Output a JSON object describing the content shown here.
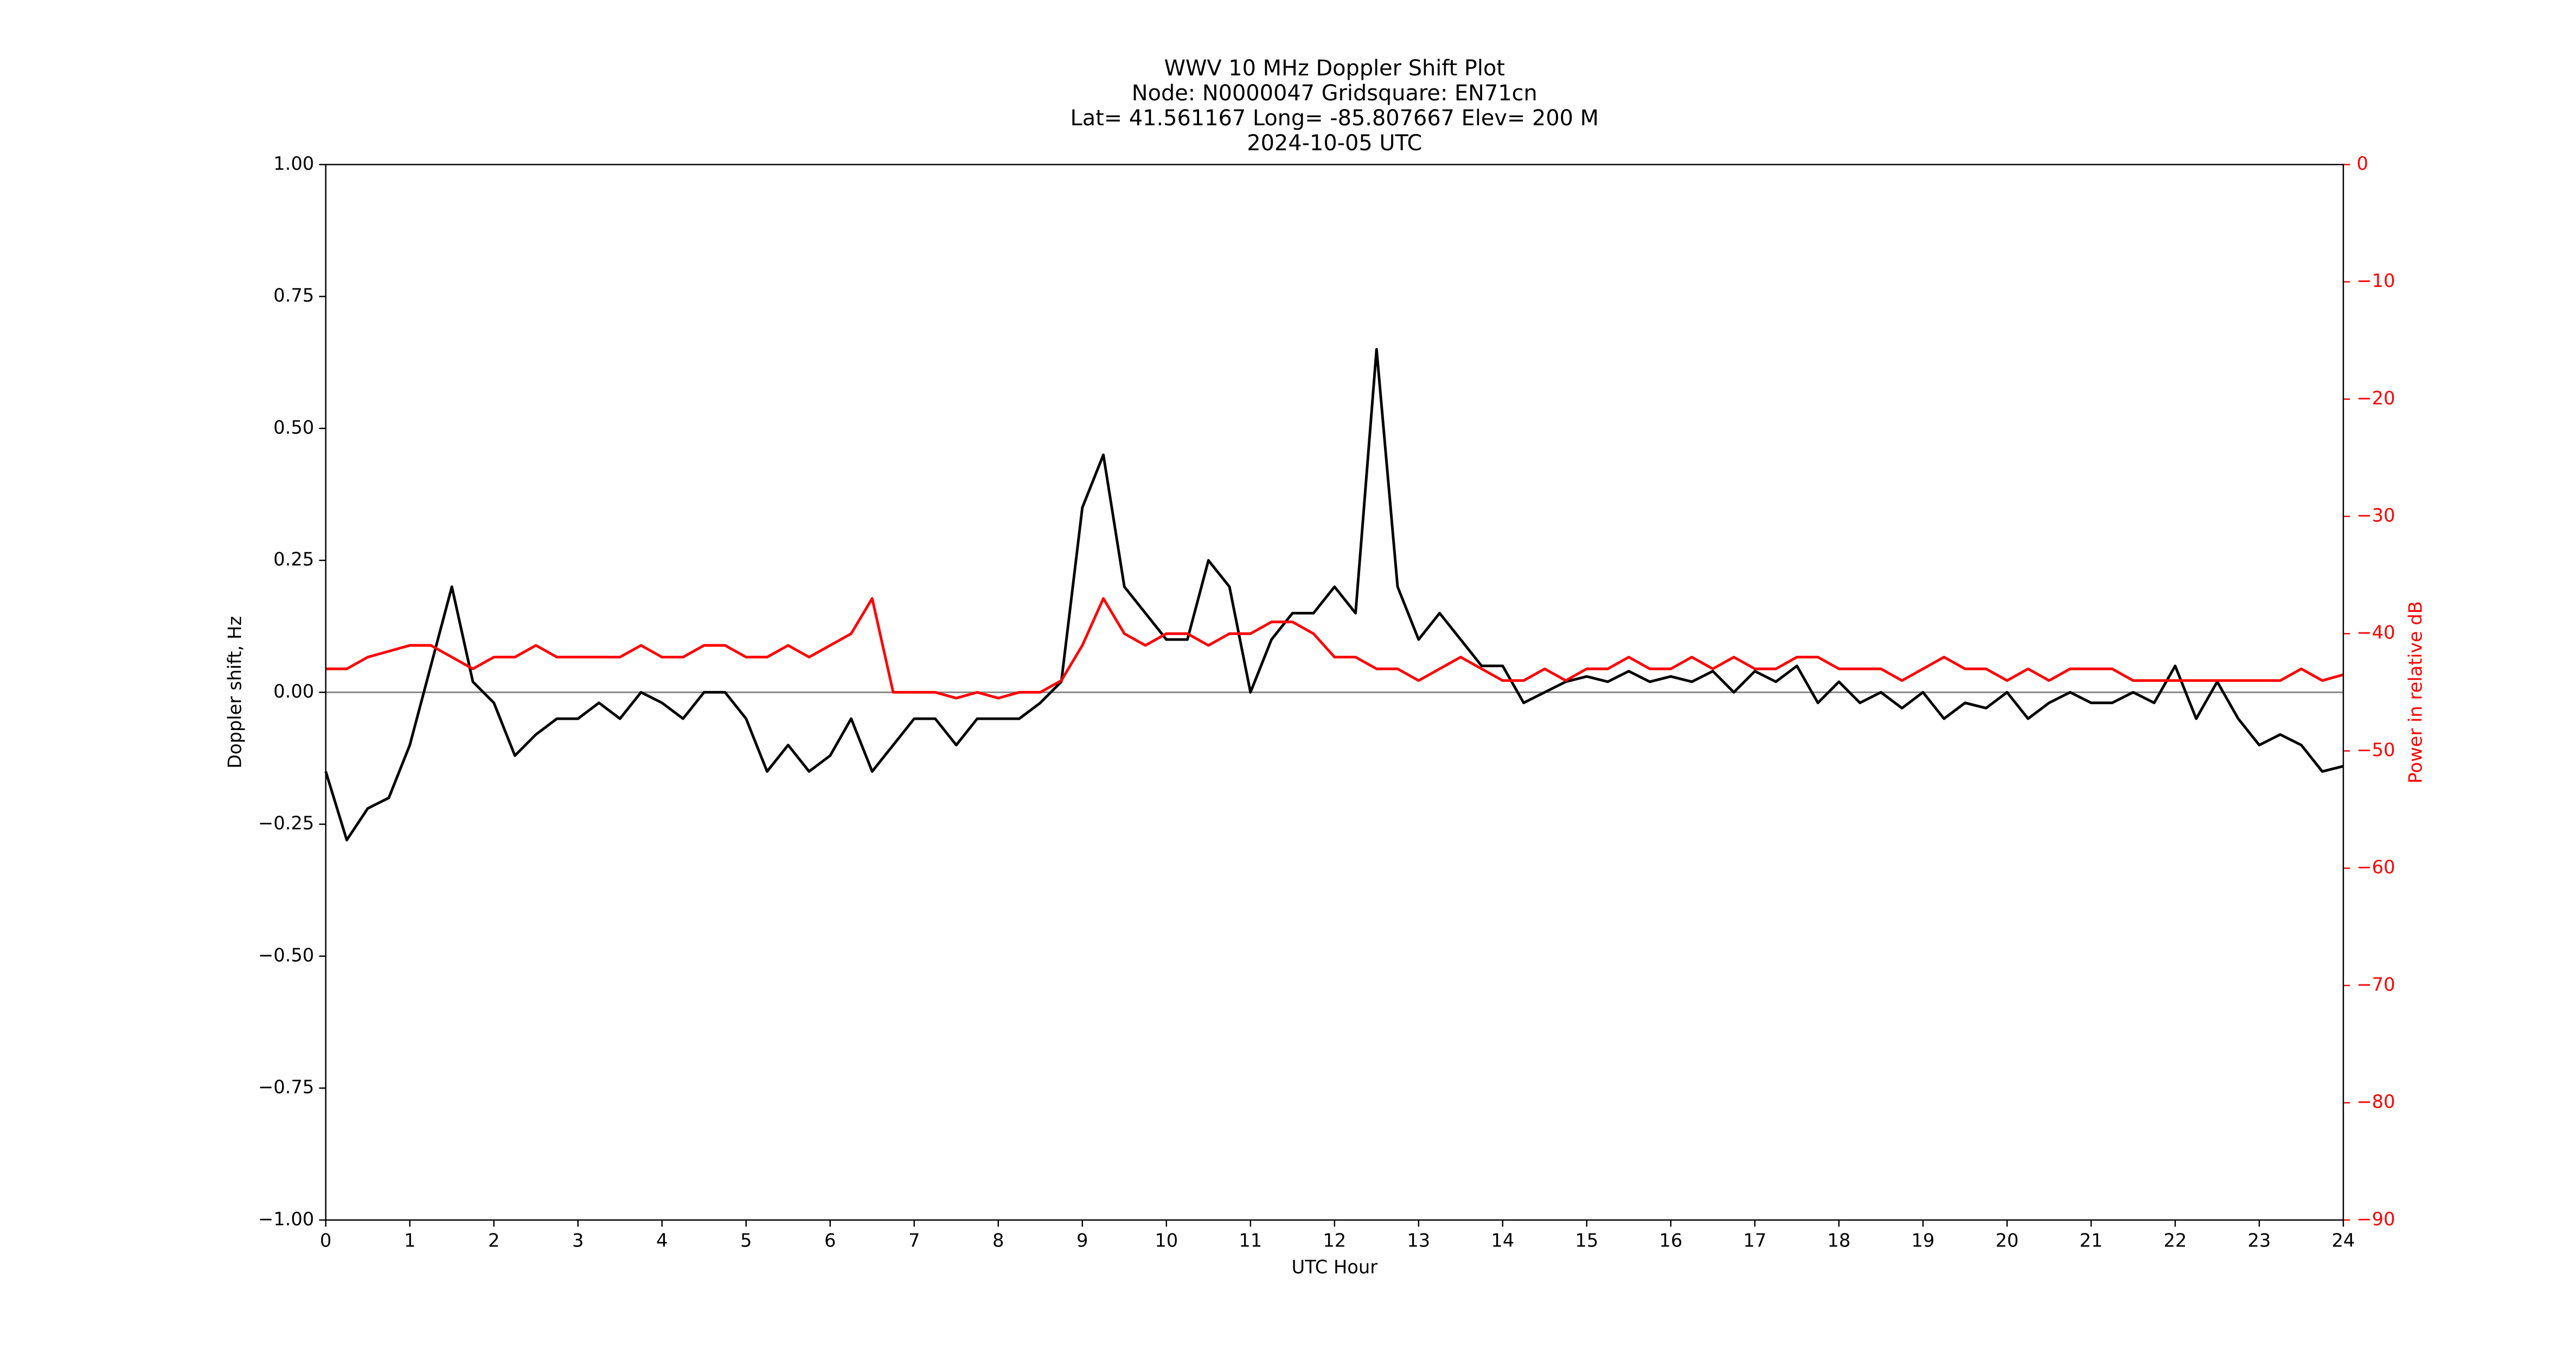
{
  "chart_data": {
    "type": "line",
    "title": [
      "WWV 10 MHz Doppler Shift Plot",
      "Node:  N0000047     Gridsquare:  EN71cn",
      "Lat= 41.561167    Long= -85.807667    Elev= 200 M",
      "2024-10-05  UTC"
    ],
    "x_label": "UTC Hour",
    "y_label": "Doppler shift, Hz",
    "y2_label": "Power in relative dB",
    "x": [
      0,
      0.25,
      0.5,
      0.75,
      1,
      1.25,
      1.5,
      1.75,
      2,
      2.25,
      2.5,
      2.75,
      3,
      3.25,
      3.5,
      3.75,
      4,
      4.25,
      4.5,
      4.75,
      5,
      5.25,
      5.5,
      5.75,
      6,
      6.25,
      6.5,
      6.75,
      7,
      7.25,
      7.5,
      7.75,
      8,
      8.25,
      8.5,
      8.75,
      9,
      9.25,
      9.5,
      9.75,
      10,
      10.25,
      10.5,
      10.75,
      11,
      11.25,
      11.5,
      11.75,
      12,
      12.25,
      12.5,
      12.75,
      13,
      13.25,
      13.5,
      13.75,
      14,
      14.25,
      14.5,
      14.75,
      15,
      15.25,
      15.5,
      15.75,
      16,
      16.25,
      16.5,
      16.75,
      17,
      17.25,
      17.5,
      17.75,
      18,
      18.25,
      18.5,
      18.75,
      19,
      19.25,
      19.5,
      19.75,
      20,
      20.25,
      20.5,
      20.75,
      21,
      21.25,
      21.5,
      21.75,
      22,
      22.25,
      22.5,
      22.75,
      23,
      23.25,
      23.5,
      23.75,
      24
    ],
    "series": [
      {
        "color": "#000000",
        "values": [
          -0.15,
          -0.28,
          -0.22,
          -0.2,
          -0.1,
          0.05,
          0.2,
          0.02,
          -0.02,
          -0.12,
          -0.08,
          -0.05,
          -0.05,
          -0.02,
          -0.05,
          0.0,
          -0.02,
          -0.05,
          0.0,
          0.0,
          -0.05,
          -0.15,
          -0.1,
          -0.15,
          -0.12,
          -0.05,
          -0.15,
          -0.1,
          -0.05,
          -0.05,
          -0.1,
          -0.05,
          -0.05,
          -0.05,
          -0.02,
          0.02,
          0.35,
          0.45,
          0.2,
          0.15,
          0.1,
          0.1,
          0.25,
          0.2,
          0.0,
          0.1,
          0.15,
          0.15,
          0.2,
          0.15,
          0.65,
          0.2,
          0.1,
          0.15,
          0.1,
          0.05,
          0.05,
          -0.02,
          0.0,
          0.02,
          0.03,
          0.02,
          0.04,
          0.02,
          0.03,
          0.02,
          0.04,
          0.0,
          0.04,
          0.02,
          0.05,
          -0.02,
          0.02,
          -0.02,
          0.0,
          -0.03,
          0.0,
          -0.05,
          -0.02,
          -0.03,
          0.0,
          -0.05,
          -0.02,
          0.0,
          -0.02,
          -0.02,
          0.0,
          -0.02,
          0.05,
          -0.05,
          0.02,
          -0.05,
          -0.1,
          -0.08,
          -0.1,
          -0.15,
          -0.14
        ]
      },
      {
        "color": "#ff0000",
        "axis": "y2",
        "values": [
          -43,
          -43,
          -42,
          -41.5,
          -41,
          -41,
          -42,
          -43,
          -42,
          -42,
          -41,
          -42,
          -42,
          -42,
          -42,
          -41,
          -42,
          -42,
          -41,
          -41,
          -42,
          -42,
          -41,
          -42,
          -41,
          -40,
          -37,
          -45,
          -45,
          -45,
          -45.5,
          -45,
          -45.5,
          -45,
          -45,
          -44,
          -41,
          -37,
          -40,
          -41,
          -40,
          -40,
          -41,
          -40,
          -40,
          -39,
          -39,
          -40,
          -42,
          -42,
          -43,
          -43,
          -44,
          -43,
          -42,
          -43,
          -44,
          -44,
          -43,
          -44,
          -43,
          -43,
          -42,
          -43,
          -43,
          -42,
          -43,
          -42,
          -43,
          -43,
          -42,
          -42,
          -43,
          -43,
          -43,
          -44,
          -43,
          -42,
          -43,
          -43,
          -44,
          -43,
          -44,
          -43,
          -43,
          -43,
          -44,
          -44,
          -44,
          -44,
          -44,
          -44,
          -44,
          -44,
          -43,
          -44,
          -43.5
        ]
      }
    ],
    "hlines": [
      0
    ],
    "hline_color": "#888888",
    "xlim": [
      0,
      24
    ],
    "xticks": [
      0,
      1,
      2,
      3,
      4,
      5,
      6,
      7,
      8,
      9,
      10,
      11,
      12,
      13,
      14,
      15,
      16,
      17,
      18,
      19,
      20,
      21,
      22,
      23,
      24
    ],
    "ylim": [
      -1,
      1
    ],
    "yticks": [
      {
        "value": -1,
        "label": "−1.00"
      },
      {
        "value": -0.75,
        "label": "−0.75"
      },
      {
        "value": -0.5,
        "label": "−0.50"
      },
      {
        "value": -0.25,
        "label": "−0.25"
      },
      {
        "value": 0,
        "label": "0.00"
      },
      {
        "value": 0.25,
        "label": "0.25"
      },
      {
        "value": 0.5,
        "label": "0.50"
      },
      {
        "value": 0.75,
        "label": "0.75"
      },
      {
        "value": 1,
        "label": "1.00"
      }
    ],
    "y2lim": [
      -90,
      0
    ],
    "y2ticks": [
      {
        "value": -90,
        "label": "−90"
      },
      {
        "value": -80,
        "label": "−80"
      },
      {
        "value": -70,
        "label": "−70"
      },
      {
        "value": -60,
        "label": "−60"
      },
      {
        "value": -50,
        "label": "−50"
      },
      {
        "value": -40,
        "label": "−40"
      },
      {
        "value": -30,
        "label": "−30"
      },
      {
        "value": -20,
        "label": "−20"
      },
      {
        "value": -10,
        "label": "−10"
      },
      0
    ],
    "y2_color": "#ff0000"
  }
}
